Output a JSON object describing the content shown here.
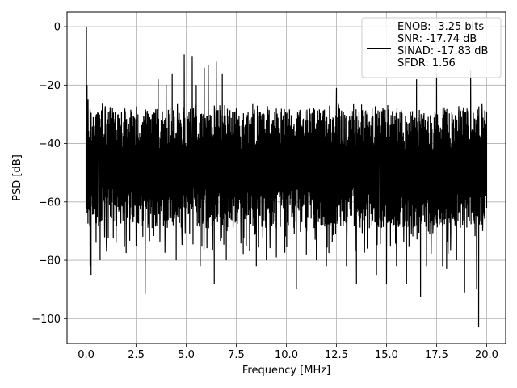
{
  "chart_data": {
    "type": "line",
    "title": "",
    "xlabel": "Frequency [MHz]",
    "ylabel": "PSD [dB]",
    "xlim": [
      -0.95,
      20.95
    ],
    "ylim": [
      -108.5,
      5.0
    ],
    "x_ticks": [
      0.0,
      2.5,
      5.0,
      7.5,
      10.0,
      12.5,
      15.0,
      17.5,
      20.0
    ],
    "x_tick_labels": [
      "0.0",
      "2.5",
      "5.0",
      "7.5",
      "10.0",
      "12.5",
      "15.0",
      "17.5",
      "20.0"
    ],
    "y_ticks": [
      0,
      -20,
      -40,
      -60,
      -80,
      -100
    ],
    "y_tick_labels": [
      "0",
      "−20",
      "−40",
      "−60",
      "−80",
      "−100"
    ],
    "grid": true,
    "legend_position": "top-right",
    "legend_entries": [
      "ENOB: -3.25 bits",
      "SNR: -17.74 dB",
      "SINAD: -17.83 dB",
      "SFDR: 1.56"
    ],
    "series": [
      {
        "color": "#000000",
        "description": "dense noise-floor PSD trace, approx. -30 to -65 dB over 0-20 MHz",
        "points": [
          [
            0.0,
            -62
          ],
          [
            0.02,
            0.0
          ],
          [
            0.05,
            -20
          ],
          [
            0.1,
            -25
          ],
          [
            0.12,
            -60
          ],
          [
            0.18,
            -68
          ],
          [
            0.2,
            -82
          ],
          [
            0.25,
            -85
          ],
          [
            0.3,
            -50
          ],
          [
            0.5,
            -74
          ],
          [
            0.7,
            -80
          ],
          [
            1.0,
            -62
          ],
          [
            1.5,
            -74
          ],
          [
            2.0,
            -76
          ],
          [
            2.5,
            -75
          ],
          [
            2.95,
            -91.5
          ],
          [
            3.3,
            -30
          ],
          [
            3.6,
            -18
          ],
          [
            4.0,
            -20
          ],
          [
            4.3,
            -16
          ],
          [
            4.5,
            -80
          ],
          [
            4.9,
            -9.5
          ],
          [
            5.3,
            -10
          ],
          [
            5.5,
            -20
          ],
          [
            5.7,
            -82
          ],
          [
            5.9,
            -14
          ],
          [
            6.1,
            -13
          ],
          [
            6.4,
            -88
          ],
          [
            6.5,
            -12
          ],
          [
            6.8,
            -16
          ],
          [
            7.0,
            -80
          ],
          [
            7.5,
            -28
          ],
          [
            8.0,
            -75
          ],
          [
            8.5,
            -82
          ],
          [
            9.0,
            -80
          ],
          [
            9.5,
            -79
          ],
          [
            10.0,
            -30
          ],
          [
            10.5,
            -90
          ],
          [
            11.0,
            -78
          ],
          [
            11.5,
            -80
          ],
          [
            12.0,
            -82
          ],
          [
            12.5,
            -21
          ],
          [
            13.0,
            -82
          ],
          [
            13.5,
            -88
          ],
          [
            14.0,
            -30
          ],
          [
            14.5,
            -85
          ],
          [
            15.0,
            -88
          ],
          [
            15.5,
            -82
          ],
          [
            16.0,
            -88
          ],
          [
            16.5,
            -18
          ],
          [
            16.7,
            -92.5
          ],
          [
            17.0,
            -82
          ],
          [
            17.5,
            -16
          ],
          [
            17.8,
            -82
          ],
          [
            18.0,
            -83
          ],
          [
            18.5,
            -80
          ],
          [
            18.9,
            -91
          ],
          [
            19.2,
            -15
          ],
          [
            19.5,
            -90
          ],
          [
            19.6,
            -103
          ],
          [
            19.8,
            -70
          ],
          [
            20.0,
            -62
          ]
        ]
      }
    ]
  }
}
